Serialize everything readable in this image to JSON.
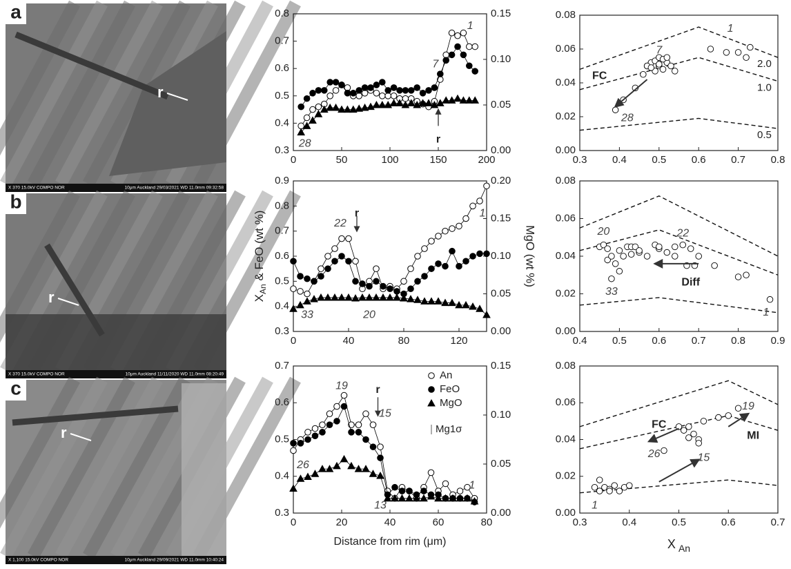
{
  "images": [
    {
      "label": "a",
      "marker": "r",
      "footer_left": "X 370   15.0kV COMPO   NOR",
      "footer_right": "10μm  Auckland 29/03/2021   WD 11.0mm 09:32:58"
    },
    {
      "label": "b",
      "marker": "r",
      "footer_left": "X 370   15.0kV COMPO   NOR",
      "footer_right": "10μm  Auckland 11/11/2020   WD 11.0mm 08:20:49"
    },
    {
      "label": "c",
      "marker": "r",
      "footer_left": "X 1,100   15.0kV COMPO   NOR",
      "footer_right": "10μm  Auckland 29/09/2021   WD 11.0mm 10:40:24"
    }
  ],
  "chart_data": [
    {
      "type": "line",
      "xlim": [
        0,
        200
      ],
      "xticks": [
        0,
        50,
        100,
        150,
        200
      ],
      "ylim": [
        0.3,
        0.8
      ],
      "yticks": [
        0.3,
        0.4,
        0.5,
        0.6,
        0.7,
        0.8
      ],
      "y2lim": [
        0,
        0.15
      ],
      "y2ticks": [
        {
          "value": 0,
          "label": "0.00"
        },
        0.05,
        {
          "value": 0.1,
          "label": "0.10"
        },
        0.15
      ],
      "x": [
        8,
        14,
        20,
        26,
        32,
        38,
        44,
        50,
        56,
        62,
        68,
        74,
        80,
        86,
        92,
        98,
        104,
        110,
        116,
        122,
        128,
        134,
        140,
        146,
        152,
        158,
        164,
        170,
        176,
        182,
        188
      ],
      "series": [
        {
          "name": "An",
          "marker": "open-circle",
          "color": "#000000",
          "values": [
            0.39,
            0.42,
            0.45,
            0.46,
            0.47,
            0.5,
            0.52,
            0.54,
            0.53,
            0.5,
            0.5,
            0.51,
            0.52,
            0.51,
            0.5,
            0.5,
            0.5,
            0.49,
            0.49,
            0.49,
            0.48,
            0.47,
            0.46,
            0.48,
            0.56,
            0.65,
            0.73,
            0.72,
            0.73,
            0.68,
            0.68
          ]
        },
        {
          "name": "FeO",
          "marker": "filled-circle",
          "color": "#000000",
          "values": [
            0.46,
            0.49,
            0.51,
            0.52,
            0.52,
            0.55,
            0.55,
            0.54,
            0.51,
            0.51,
            0.52,
            0.53,
            0.53,
            0.54,
            0.55,
            0.52,
            0.53,
            0.52,
            0.52,
            0.52,
            0.53,
            0.51,
            0.52,
            0.53,
            0.58,
            0.63,
            0.65,
            0.68,
            0.65,
            0.61,
            0.59
          ]
        },
        {
          "name": "MgO",
          "marker": "triangle",
          "color": "#000000",
          "axis": "y2",
          "values": [
            0.02,
            0.027,
            0.033,
            0.04,
            0.045,
            0.047,
            0.047,
            0.045,
            0.045,
            0.045,
            0.046,
            0.047,
            0.048,
            0.05,
            0.05,
            0.05,
            0.052,
            0.052,
            0.05,
            0.052,
            0.05,
            0.052,
            0.052,
            0.05,
            0.052,
            0.055,
            0.055,
            0.057,
            0.055,
            0.055,
            0.055
          ]
        }
      ],
      "annotations": [
        "1",
        "7",
        "28",
        "r"
      ]
    },
    {
      "type": "line",
      "xlim": [
        0,
        140
      ],
      "xticks": [
        0,
        40,
        80,
        120
      ],
      "ylim": [
        0.3,
        0.9
      ],
      "yticks": [
        0.3,
        0.4,
        0.5,
        0.6,
        0.7,
        0.8,
        0.9
      ],
      "y2lim": [
        0,
        0.2
      ],
      "y2ticks": [
        {
          "value": 0,
          "label": "0.00"
        },
        0.05,
        {
          "value": 0.1,
          "label": "0.10"
        },
        0.15,
        {
          "value": 0.2,
          "label": "0.20"
        }
      ],
      "y_label_symbol": "X",
      "y_label_sub": "An",
      "y_label_rest": " & FeO (wt %)",
      "y2_label": "MgO (wt %)",
      "x": [
        0,
        5,
        10,
        15,
        20,
        25,
        30,
        35,
        40,
        45,
        50,
        55,
        60,
        65,
        70,
        75,
        80,
        85,
        90,
        95,
        100,
        105,
        110,
        115,
        120,
        125,
        130,
        135,
        140
      ],
      "series": [
        {
          "name": "An",
          "marker": "open-circle",
          "color": "#000000",
          "values": [
            0.47,
            0.46,
            0.45,
            0.5,
            0.55,
            0.6,
            0.63,
            0.67,
            0.67,
            0.58,
            0.47,
            0.5,
            0.55,
            0.47,
            0.48,
            0.47,
            0.5,
            0.55,
            0.6,
            0.63,
            0.66,
            0.68,
            0.7,
            0.71,
            0.72,
            0.75,
            0.8,
            0.82,
            0.88
          ]
        },
        {
          "name": "FeO",
          "marker": "filled-circle",
          "color": "#000000",
          "values": [
            0.58,
            0.52,
            0.51,
            0.5,
            0.52,
            0.55,
            0.58,
            0.6,
            0.58,
            0.5,
            0.49,
            0.48,
            0.5,
            0.48,
            0.47,
            0.46,
            0.45,
            0.47,
            0.5,
            0.52,
            0.55,
            0.57,
            0.56,
            0.62,
            0.56,
            0.58,
            0.6,
            0.61,
            0.61
          ]
        },
        {
          "name": "MgO",
          "marker": "triangle",
          "color": "#000000",
          "axis": "y2",
          "values": [
            0.03,
            0.035,
            0.04,
            0.043,
            0.045,
            0.045,
            0.045,
            0.045,
            0.045,
            0.044,
            0.045,
            0.045,
            0.045,
            0.045,
            0.045,
            0.045,
            0.044,
            0.043,
            0.042,
            0.04,
            0.04,
            0.04,
            0.038,
            0.038,
            0.035,
            0.035,
            0.033,
            0.03,
            0.022
          ]
        }
      ],
      "annotations": [
        "22",
        "r",
        "1",
        "33",
        "20"
      ]
    },
    {
      "type": "line",
      "xlim": [
        0,
        80
      ],
      "xticks": [
        0,
        20,
        40,
        60,
        80
      ],
      "ylim": [
        0.3,
        0.7
      ],
      "yticks": [
        0.3,
        0.4,
        0.5,
        0.6,
        0.7
      ],
      "y2lim": [
        0,
        0.15
      ],
      "y2ticks": [
        {
          "value": 0,
          "label": "0.00"
        },
        0.05,
        {
          "value": 0.1,
          "label": "0.10"
        },
        0.15
      ],
      "x_label": "Distance from rim (μm)",
      "legend": "top-right",
      "error_label": "Mg1σ",
      "x": [
        0,
        3,
        6,
        9,
        12,
        15,
        18,
        21,
        24,
        27,
        30,
        33,
        36,
        39,
        42,
        45,
        48,
        51,
        54,
        57,
        60,
        63,
        66,
        69,
        72,
        75
      ],
      "series": [
        {
          "name": "An",
          "marker": "open-circle",
          "color": "#000000",
          "values": [
            0.47,
            0.5,
            0.52,
            0.53,
            0.54,
            0.57,
            0.59,
            0.62,
            0.54,
            0.54,
            0.57,
            0.54,
            0.48,
            0.36,
            0.34,
            0.37,
            0.36,
            0.34,
            0.37,
            0.41,
            0.36,
            0.38,
            0.35,
            0.36,
            0.37,
            0.34
          ]
        },
        {
          "name": "FeO",
          "marker": "filled-circle",
          "color": "#000000",
          "values": [
            0.49,
            0.49,
            0.5,
            0.51,
            0.52,
            0.54,
            0.55,
            0.59,
            0.52,
            0.52,
            0.5,
            0.48,
            0.45,
            0.35,
            0.37,
            0.36,
            0.36,
            0.35,
            0.36,
            0.35,
            0.35,
            0.34,
            0.34,
            0.34,
            0.34,
            0.33
          ]
        },
        {
          "name": "MgO",
          "marker": "triangle",
          "color": "#000000",
          "axis": "y2",
          "values": [
            0.025,
            0.035,
            0.037,
            0.04,
            0.045,
            0.045,
            0.048,
            0.055,
            0.048,
            0.045,
            0.045,
            0.04,
            0.038,
            0.015,
            0.015,
            0.015,
            0.015,
            0.015,
            0.015,
            0.017,
            0.015,
            0.015,
            0.015,
            0.015,
            0.015,
            0.012
          ]
        }
      ],
      "annotations": [
        "19",
        "r",
        "15",
        "26",
        "1",
        "13"
      ]
    },
    {
      "type": "scatter",
      "xlim": [
        0.3,
        0.8
      ],
      "xticks": [
        0.3,
        0.4,
        0.5,
        0.6,
        0.7,
        0.8
      ],
      "ylim": [
        0,
        0.08
      ],
      "yticks": [
        {
          "value": 0,
          "label": "0.00"
        },
        0.02,
        0.04,
        0.06,
        0.08
      ],
      "lines": [
        {
          "label": "2.0",
          "x": [
            0.3,
            0.6,
            0.8
          ],
          "y": [
            0.048,
            0.073,
            0.055
          ]
        },
        {
          "label": "1.0",
          "x": [
            0.3,
            0.6,
            0.8
          ],
          "y": [
            0.036,
            0.055,
            0.041
          ]
        },
        {
          "label": "0.5",
          "x": [
            0.3,
            0.6,
            0.8
          ],
          "y": [
            0.012,
            0.019,
            0.013
          ]
        }
      ],
      "x": [
        0.39,
        0.41,
        0.44,
        0.46,
        0.47,
        0.48,
        0.49,
        0.5,
        0.5,
        0.51,
        0.52,
        0.53,
        0.47,
        0.49,
        0.51,
        0.48,
        0.5,
        0.52,
        0.54,
        0.63,
        0.67,
        0.7,
        0.73,
        0.72
      ],
      "values": [
        0.024,
        0.03,
        0.037,
        0.045,
        0.05,
        0.052,
        0.053,
        0.055,
        0.05,
        0.048,
        0.052,
        0.05,
        0.05,
        0.047,
        0.054,
        0.049,
        0.051,
        0.055,
        0.047,
        0.06,
        0.058,
        0.058,
        0.061,
        0.055
      ],
      "annotations": [
        "1",
        "7",
        "28",
        "FC"
      ]
    },
    {
      "type": "scatter",
      "xlim": [
        0.4,
        0.9
      ],
      "xticks": [
        0.4,
        0.5,
        0.6,
        0.7,
        0.8,
        0.9
      ],
      "ylim": [
        0,
        0.08
      ],
      "yticks": [
        {
          "value": 0,
          "label": "0.00"
        },
        0.02,
        0.04,
        0.06,
        0.08
      ],
      "lines": [
        {
          "x": [
            0.4,
            0.6,
            0.9
          ],
          "y": [
            0.055,
            0.072,
            0.04
          ]
        },
        {
          "x": [
            0.4,
            0.6,
            0.9
          ],
          "y": [
            0.043,
            0.054,
            0.03
          ]
        },
        {
          "x": [
            0.4,
            0.6,
            0.9
          ],
          "y": [
            0.014,
            0.018,
            0.01
          ]
        }
      ],
      "x": [
        0.45,
        0.46,
        0.47,
        0.48,
        0.49,
        0.5,
        0.51,
        0.52,
        0.53,
        0.54,
        0.55,
        0.57,
        0.59,
        0.6,
        0.62,
        0.64,
        0.66,
        0.68,
        0.7,
        0.74,
        0.8,
        0.82,
        0.88,
        0.47,
        0.48,
        0.5,
        0.53,
        0.55,
        0.6,
        0.64,
        0.67,
        0.69
      ],
      "values": [
        0.045,
        0.046,
        0.044,
        0.028,
        0.036,
        0.032,
        0.04,
        0.045,
        0.045,
        0.045,
        0.042,
        0.04,
        0.046,
        0.044,
        0.042,
        0.045,
        0.046,
        0.044,
        0.04,
        0.035,
        0.029,
        0.03,
        0.017,
        0.038,
        0.04,
        0.043,
        0.041,
        0.043,
        0.045,
        0.04,
        0.035,
        0.035
      ],
      "annotations": [
        "20",
        "22",
        "33",
        "1",
        "Diff"
      ]
    },
    {
      "type": "scatter",
      "xlim": [
        0.3,
        0.7
      ],
      "xticks": [
        0.3,
        0.4,
        0.5,
        0.6,
        0.7
      ],
      "ylim": [
        0,
        0.08
      ],
      "yticks": [
        {
          "value": 0,
          "label": "0.00"
        },
        0.02,
        0.04,
        0.06,
        0.08
      ],
      "x_label_symbol": "X",
      "x_label_sub": "An",
      "lines": [
        {
          "x": [
            0.3,
            0.6,
            0.7
          ],
          "y": [
            0.047,
            0.072,
            0.059
          ]
        },
        {
          "x": [
            0.3,
            0.6,
            0.7
          ],
          "y": [
            0.035,
            0.053,
            0.045
          ]
        },
        {
          "x": [
            0.3,
            0.6,
            0.7
          ],
          "y": [
            0.011,
            0.018,
            0.015
          ]
        }
      ],
      "x": [
        0.33,
        0.34,
        0.35,
        0.36,
        0.37,
        0.38,
        0.39,
        0.4,
        0.34,
        0.36,
        0.47,
        0.5,
        0.51,
        0.52,
        0.53,
        0.54,
        0.54,
        0.52,
        0.55,
        0.58,
        0.6,
        0.62
      ],
      "values": [
        0.014,
        0.018,
        0.014,
        0.013,
        0.015,
        0.012,
        0.014,
        0.015,
        0.012,
        0.012,
        0.034,
        0.047,
        0.045,
        0.041,
        0.043,
        0.04,
        0.038,
        0.047,
        0.05,
        0.052,
        0.053,
        0.057
      ],
      "annotations": [
        "19",
        "26",
        "15",
        "1",
        "FC",
        "MI"
      ]
    }
  ]
}
